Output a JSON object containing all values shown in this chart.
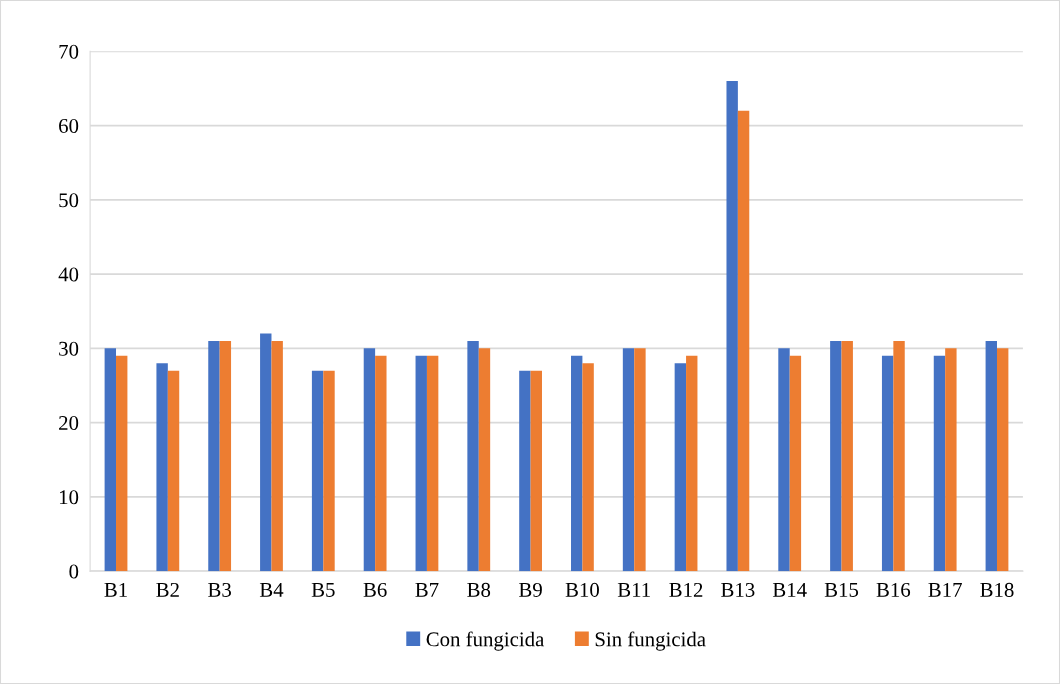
{
  "chart_data": {
    "type": "bar",
    "categories": [
      "B1",
      "B2",
      "B3",
      "B4",
      "B5",
      "B6",
      "B7",
      "B8",
      "B9",
      "B10",
      "B11",
      "B12",
      "B13",
      "B14",
      "B15",
      "B16",
      "B17",
      "B18"
    ],
    "series": [
      {
        "name": "Con fungicida",
        "color": "#4472c4",
        "values": [
          30,
          28,
          31,
          32,
          27,
          30,
          29,
          31,
          27,
          29,
          30,
          28,
          66,
          30,
          31,
          29,
          29,
          31
        ]
      },
      {
        "name": "Sin fungicida",
        "color": "#ed7d31",
        "values": [
          29,
          27,
          31,
          31,
          27,
          29,
          29,
          30,
          27,
          28,
          30,
          29,
          62,
          29,
          31,
          31,
          30,
          30
        ]
      }
    ],
    "ylim": [
      0,
      70
    ],
    "yticks": [
      0,
      10,
      20,
      30,
      40,
      50,
      60,
      70
    ],
    "grid": "y",
    "legend": "bottom"
  }
}
